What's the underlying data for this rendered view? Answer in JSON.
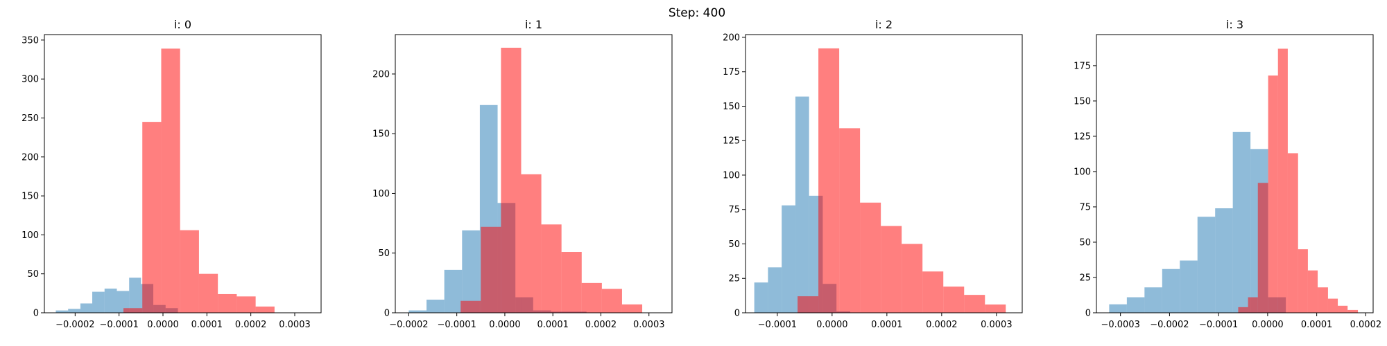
{
  "suptitle": "Step: 400",
  "colors": {
    "blue": "#1f77b4",
    "red": "#ff0000"
  },
  "chart_data": [
    {
      "type": "histogram",
      "title": "i: 0",
      "xlim": [
        -0.00027,
        0.00036
      ],
      "ylim": [
        0,
        357
      ],
      "xticks": [
        -0.0002,
        -0.0001,
        0.0,
        0.0001,
        0.0002,
        0.0003
      ],
      "xtick_labels": [
        "−0.0002",
        "−0.0001",
        "0.0000",
        "0.0001",
        "0.0002",
        "0.0003"
      ],
      "yticks": [
        0,
        50,
        100,
        150,
        200,
        250,
        300,
        350
      ],
      "series": [
        {
          "color": "blue",
          "bins": [
            {
              "x0": -0.000244,
              "x1": -0.000216,
              "count": 3
            },
            {
              "x0": -0.000216,
              "x1": -0.000188,
              "count": 5
            },
            {
              "x0": -0.000188,
              "x1": -0.000161,
              "count": 12
            },
            {
              "x0": -0.000161,
              "x1": -0.000133,
              "count": 27
            },
            {
              "x0": -0.000133,
              "x1": -0.000105,
              "count": 31
            },
            {
              "x0": -0.000105,
              "x1": -7.7e-05,
              "count": 28
            },
            {
              "x0": -7.7e-05,
              "x1": -5e-05,
              "count": 45
            },
            {
              "x0": -5e-05,
              "x1": -2.2e-05,
              "count": 37
            },
            {
              "x0": -2.2e-05,
              "x1": 6e-06,
              "count": 10
            },
            {
              "x0": 6e-06,
              "x1": 3.4e-05,
              "count": 6
            }
          ]
        },
        {
          "color": "red",
          "bins": [
            {
              "x0": -9e-05,
              "x1": -4.7e-05,
              "count": 6
            },
            {
              "x0": -4.7e-05,
              "x1": -4e-06,
              "count": 245
            },
            {
              "x0": -4e-06,
              "x1": 3.9e-05,
              "count": 339
            },
            {
              "x0": 3.9e-05,
              "x1": 8.2e-05,
              "count": 106
            },
            {
              "x0": 8.2e-05,
              "x1": 0.000125,
              "count": 50
            },
            {
              "x0": 0.000125,
              "x1": 0.000168,
              "count": 24
            },
            {
              "x0": 0.000168,
              "x1": 0.000211,
              "count": 21
            },
            {
              "x0": 0.000211,
              "x1": 0.000254,
              "count": 8
            }
          ]
        }
      ]
    },
    {
      "type": "histogram",
      "title": "i: 1",
      "xlim": [
        -0.000228,
        0.000348
      ],
      "ylim": [
        0,
        233
      ],
      "xticks": [
        -0.0002,
        -0.0001,
        0.0,
        0.0001,
        0.0002,
        0.0003
      ],
      "xtick_labels": [
        "−0.0002",
        "−0.0001",
        "0.0000",
        "0.0001",
        "0.0002",
        "0.0003"
      ],
      "yticks": [
        0,
        50,
        100,
        150,
        200
      ],
      "series": [
        {
          "color": "blue",
          "bins": [
            {
              "x0": -0.0002,
              "x1": -0.000163,
              "count": 2
            },
            {
              "x0": -0.000163,
              "x1": -0.000126,
              "count": 11
            },
            {
              "x0": -0.000126,
              "x1": -8.9e-05,
              "count": 36
            },
            {
              "x0": -8.9e-05,
              "x1": -5.2e-05,
              "count": 69
            },
            {
              "x0": -5.2e-05,
              "x1": -1.5e-05,
              "count": 174
            },
            {
              "x0": -1.5e-05,
              "x1": 2.2e-05,
              "count": 92
            },
            {
              "x0": 2.2e-05,
              "x1": 5.9e-05,
              "count": 13
            },
            {
              "x0": 5.9e-05,
              "x1": 9.6e-05,
              "count": 2
            },
            {
              "x0": 9.6e-05,
              "x1": 0.000133,
              "count": 1
            },
            {
              "x0": 0.000133,
              "x1": 0.00017,
              "count": 1
            }
          ]
        },
        {
          "color": "red",
          "bins": [
            {
              "x0": -9.2e-05,
              "x1": -5e-05,
              "count": 10
            },
            {
              "x0": -5e-05,
              "x1": -8e-06,
              "count": 72
            },
            {
              "x0": -8e-06,
              "x1": 3.4e-05,
              "count": 222
            },
            {
              "x0": 3.4e-05,
              "x1": 7.6e-05,
              "count": 116
            },
            {
              "x0": 7.6e-05,
              "x1": 0.000118,
              "count": 74
            },
            {
              "x0": 0.000118,
              "x1": 0.00016,
              "count": 51
            },
            {
              "x0": 0.00016,
              "x1": 0.000202,
              "count": 25
            },
            {
              "x0": 0.000202,
              "x1": 0.000244,
              "count": 20
            },
            {
              "x0": 0.000244,
              "x1": 0.000286,
              "count": 7
            }
          ]
        }
      ]
    },
    {
      "type": "histogram",
      "title": "i: 2",
      "xlim": [
        -0.000158,
        0.000347
      ],
      "ylim": [
        0,
        202
      ],
      "xticks": [
        -0.0001,
        0.0,
        0.0001,
        0.0002,
        0.0003
      ],
      "xtick_labels": [
        "−0.0001",
        "0.0000",
        "0.0001",
        "0.0002",
        "0.0003"
      ],
      "yticks": [
        0,
        25,
        50,
        75,
        100,
        125,
        150,
        175,
        200
      ],
      "series": [
        {
          "color": "blue",
          "bins": [
            {
              "x0": -0.000142,
              "x1": -0.000117,
              "count": 22
            },
            {
              "x0": -0.000117,
              "x1": -9.2e-05,
              "count": 33
            },
            {
              "x0": -9.2e-05,
              "x1": -6.7e-05,
              "count": 78
            },
            {
              "x0": -6.7e-05,
              "x1": -4.2e-05,
              "count": 157
            },
            {
              "x0": -4.2e-05,
              "x1": -1.7e-05,
              "count": 85
            },
            {
              "x0": -1.7e-05,
              "x1": 8e-06,
              "count": 21
            },
            {
              "x0": 8e-06,
              "x1": 3.3e-05,
              "count": 1
            }
          ]
        },
        {
          "color": "red",
          "bins": [
            {
              "x0": -6.3e-05,
              "x1": -2.5e-05,
              "count": 12
            },
            {
              "x0": -2.5e-05,
              "x1": 1.3e-05,
              "count": 192
            },
            {
              "x0": 1.3e-05,
              "x1": 5.1e-05,
              "count": 134
            },
            {
              "x0": 5.1e-05,
              "x1": 8.9e-05,
              "count": 80
            },
            {
              "x0": 8.9e-05,
              "x1": 0.000127,
              "count": 63
            },
            {
              "x0": 0.000127,
              "x1": 0.000165,
              "count": 50
            },
            {
              "x0": 0.000165,
              "x1": 0.000203,
              "count": 30
            },
            {
              "x0": 0.000203,
              "x1": 0.000241,
              "count": 19
            },
            {
              "x0": 0.000241,
              "x1": 0.000279,
              "count": 13
            },
            {
              "x0": 0.000279,
              "x1": 0.000317,
              "count": 6
            }
          ]
        }
      ]
    },
    {
      "type": "histogram",
      "title": "i: 3",
      "xlim": [
        -0.000349,
        0.000215
      ],
      "ylim": [
        0,
        197
      ],
      "xticks": [
        -0.0003,
        -0.0002,
        -0.0001,
        0.0,
        0.0001,
        0.0002
      ],
      "xtick_labels": [
        "−0.0003",
        "−0.0002",
        "−0.0001",
        "0.0000",
        "0.0001",
        "0.0002"
      ],
      "yticks": [
        0,
        25,
        50,
        75,
        100,
        125,
        150,
        175
      ],
      "series": [
        {
          "color": "blue",
          "bins": [
            {
              "x0": -0.000323,
              "x1": -0.000287,
              "count": 6
            },
            {
              "x0": -0.000287,
              "x1": -0.000251,
              "count": 11
            },
            {
              "x0": -0.000251,
              "x1": -0.000215,
              "count": 18
            },
            {
              "x0": -0.000215,
              "x1": -0.000179,
              "count": 31
            },
            {
              "x0": -0.000179,
              "x1": -0.000143,
              "count": 37
            },
            {
              "x0": -0.000143,
              "x1": -0.000107,
              "count": 68
            },
            {
              "x0": -0.000107,
              "x1": -7.1e-05,
              "count": 74
            },
            {
              "x0": -7.1e-05,
              "x1": -3.5e-05,
              "count": 128
            },
            {
              "x0": -3.5e-05,
              "x1": 1e-06,
              "count": 116
            },
            {
              "x0": 1e-06,
              "x1": 3.7e-05,
              "count": 11
            }
          ]
        },
        {
          "color": "red",
          "bins": [
            {
              "x0": -6e-05,
              "x1": -4e-05,
              "count": 4
            },
            {
              "x0": -4e-05,
              "x1": -2e-05,
              "count": 11
            },
            {
              "x0": -2e-05,
              "x1": 1e-06,
              "count": 92
            },
            {
              "x0": 1e-06,
              "x1": 2.1e-05,
              "count": 168
            },
            {
              "x0": 2.1e-05,
              "x1": 4.1e-05,
              "count": 187
            },
            {
              "x0": 4.1e-05,
              "x1": 6.2e-05,
              "count": 113
            },
            {
              "x0": 6.2e-05,
              "x1": 8.2e-05,
              "count": 45
            },
            {
              "x0": 8.2e-05,
              "x1": 0.000102,
              "count": 30
            },
            {
              "x0": 0.000102,
              "x1": 0.000123,
              "count": 18
            },
            {
              "x0": 0.000123,
              "x1": 0.000143,
              "count": 10
            },
            {
              "x0": 0.000143,
              "x1": 0.000163,
              "count": 5
            },
            {
              "x0": 0.000163,
              "x1": 0.000184,
              "count": 2
            }
          ]
        }
      ]
    }
  ]
}
